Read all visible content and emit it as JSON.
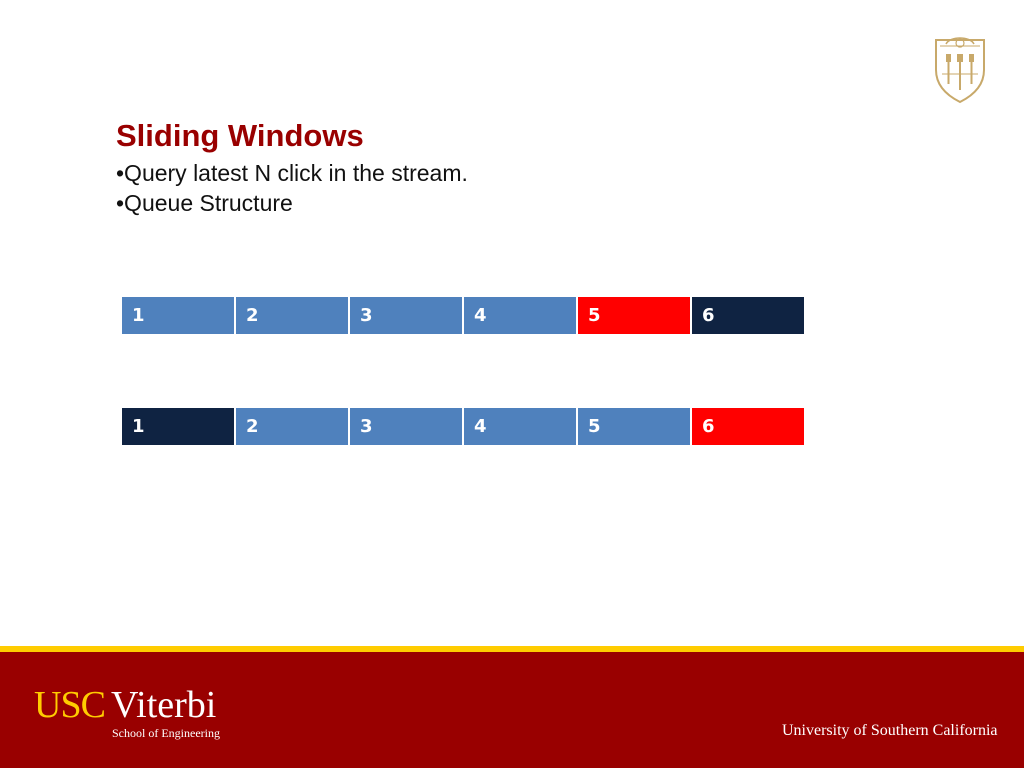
{
  "slide": {
    "title": "Sliding Windows",
    "bullets": [
      "•Query latest N click in the stream.",
      "•Queue Structure"
    ]
  },
  "queues": [
    {
      "cells": [
        {
          "label": "1",
          "state": "blue"
        },
        {
          "label": "2",
          "state": "blue"
        },
        {
          "label": "3",
          "state": "blue"
        },
        {
          "label": "4",
          "state": "blue"
        },
        {
          "label": "5",
          "state": "red"
        },
        {
          "label": "6",
          "state": "navy"
        }
      ]
    },
    {
      "cells": [
        {
          "label": "1",
          "state": "navy"
        },
        {
          "label": "2",
          "state": "blue"
        },
        {
          "label": "3",
          "state": "blue"
        },
        {
          "label": "4",
          "state": "blue"
        },
        {
          "label": "5",
          "state": "blue"
        },
        {
          "label": "6",
          "state": "red"
        }
      ]
    }
  ],
  "colors": {
    "blue": "#4f81bd",
    "red": "#ff0000",
    "navy": "#0f2342",
    "title": "#990000",
    "footer": "#990000",
    "stripe": "#ffcc00"
  },
  "footer": {
    "logo_usc": "USC",
    "logo_viterbi": "Viterbi",
    "logo_school": "School of Engineering",
    "university": "University of Southern California"
  },
  "icons": {
    "seal": "usc-seal-icon"
  }
}
